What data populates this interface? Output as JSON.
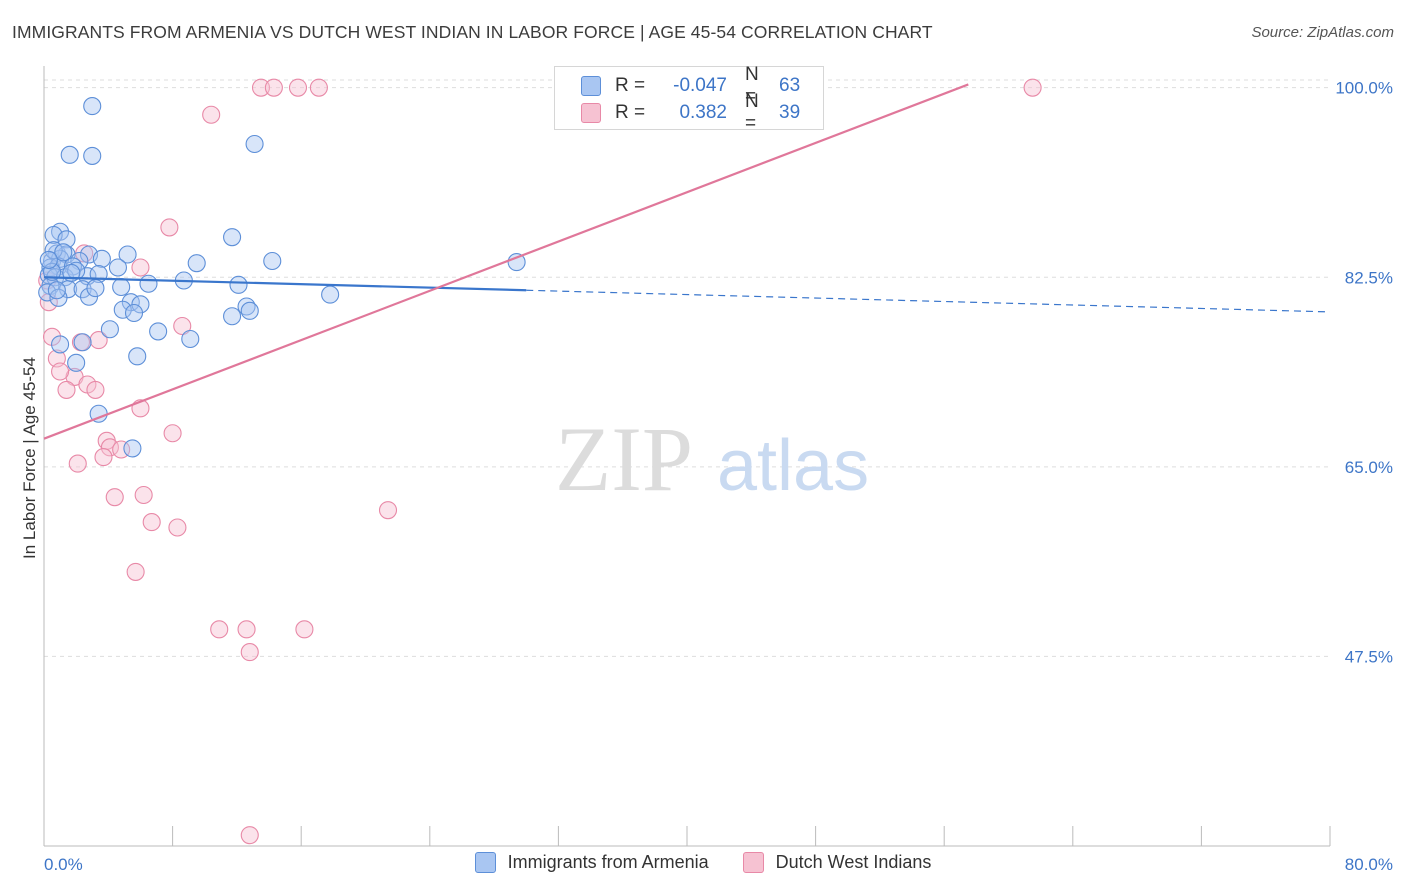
{
  "title": "IMMIGRANTS FROM ARMENIA VS DUTCH WEST INDIAN IN LABOR FORCE | AGE 45-54 CORRELATION CHART",
  "source": "Source: ZipAtlas.com",
  "watermark": {
    "zip": "ZIP",
    "atlas": "atlas"
  },
  "legend": {
    "r_label": "R =",
    "n_label": "N =",
    "armenia": {
      "r": "-0.047",
      "n": "63"
    },
    "dutch": {
      "r": "0.382",
      "n": "39"
    }
  },
  "colors": {
    "blue_fill": "#a9c6f2",
    "blue_stroke": "#5d8fd8",
    "blue_line": "#3a76cc",
    "pink_fill": "#f6c2d2",
    "pink_stroke": "#e889a7",
    "pink_line": "#e0779a",
    "grid": "#dddddd",
    "tick_text": "#3d75c7"
  },
  "chart_data": {
    "type": "scatter",
    "title": "IMMIGRANTS FROM ARMENIA VS DUTCH WEST INDIAN IN LABOR FORCE | AGE 45-54 CORRELATION CHART",
    "ylabel": "In Labor Force | Age 45-54",
    "xlabel": "",
    "xlim": [
      0,
      80
    ],
    "ylim": [
      30,
      102
    ],
    "x_tick_labels": [
      "0.0%",
      "80.0%"
    ],
    "y_ticks": [
      47.5,
      65.0,
      82.5,
      100.0
    ],
    "y_tick_labels": [
      "47.5%",
      "65.0%",
      "82.5%",
      "100.0%"
    ],
    "series": [
      {
        "name": "Immigrants from Armenia",
        "color": "blue",
        "trend": {
          "x0": 0,
          "y0": 82.5,
          "x1": 30,
          "y1": 81.3,
          "dash_to_x": 80,
          "dash_to_y": 79.3
        },
        "points": [
          [
            3.0,
            98.3
          ],
          [
            1.6,
            93.8
          ],
          [
            3.0,
            93.7
          ],
          [
            13.1,
            94.8
          ],
          [
            1.0,
            86.7
          ],
          [
            0.6,
            86.4
          ],
          [
            1.4,
            86.0
          ],
          [
            11.7,
            86.2
          ],
          [
            0.8,
            84.7
          ],
          [
            1.4,
            84.6
          ],
          [
            2.8,
            84.6
          ],
          [
            5.2,
            84.6
          ],
          [
            0.5,
            84.0
          ],
          [
            1.0,
            84.2
          ],
          [
            2.2,
            84.0
          ],
          [
            3.6,
            84.2
          ],
          [
            9.5,
            83.8
          ],
          [
            14.2,
            84.0
          ],
          [
            29.4,
            83.9
          ],
          [
            0.4,
            83.4
          ],
          [
            0.9,
            83.5
          ],
          [
            1.8,
            83.5
          ],
          [
            4.6,
            83.4
          ],
          [
            0.3,
            82.7
          ],
          [
            0.7,
            82.5
          ],
          [
            1.3,
            82.5
          ],
          [
            2.7,
            82.6
          ],
          [
            3.4,
            82.8
          ],
          [
            8.7,
            82.2
          ],
          [
            12.1,
            81.8
          ],
          [
            0.4,
            81.7
          ],
          [
            1.5,
            81.4
          ],
          [
            2.4,
            81.4
          ],
          [
            4.8,
            81.6
          ],
          [
            0.2,
            81.1
          ],
          [
            0.9,
            80.6
          ],
          [
            2.8,
            80.7
          ],
          [
            5.4,
            80.2
          ],
          [
            17.8,
            80.9
          ],
          [
            6.0,
            80.0
          ],
          [
            12.6,
            79.8
          ],
          [
            4.9,
            79.5
          ],
          [
            5.6,
            79.2
          ],
          [
            11.7,
            78.9
          ],
          [
            12.8,
            79.4
          ],
          [
            4.1,
            77.7
          ],
          [
            7.1,
            77.5
          ],
          [
            9.1,
            76.8
          ],
          [
            2.4,
            76.5
          ],
          [
            1.0,
            76.3
          ],
          [
            5.8,
            75.2
          ],
          [
            2.0,
            74.6
          ],
          [
            3.4,
            69.9
          ],
          [
            5.5,
            66.7
          ],
          [
            0.6,
            85.0
          ],
          [
            0.5,
            83.0
          ],
          [
            1.2,
            84.8
          ],
          [
            2.0,
            83.1
          ],
          [
            0.3,
            84.1
          ],
          [
            3.2,
            81.5
          ],
          [
            6.5,
            81.9
          ],
          [
            1.7,
            82.9
          ],
          [
            0.8,
            81.3
          ]
        ]
      },
      {
        "name": "Dutch West Indians",
        "color": "pink",
        "trend": {
          "x0": 0,
          "y0": 67.6,
          "x1": 57.5,
          "y1": 100.3
        },
        "points": [
          [
            13.5,
            100.0
          ],
          [
            14.3,
            100.0
          ],
          [
            15.8,
            100.0
          ],
          [
            17.1,
            100.0
          ],
          [
            61.5,
            100.0
          ],
          [
            10.4,
            97.5
          ],
          [
            7.8,
            87.1
          ],
          [
            6.0,
            83.4
          ],
          [
            0.2,
            82.2
          ],
          [
            0.3,
            80.2
          ],
          [
            8.6,
            78.0
          ],
          [
            0.5,
            77.0
          ],
          [
            2.3,
            76.5
          ],
          [
            3.4,
            76.7
          ],
          [
            0.8,
            75.0
          ],
          [
            1.9,
            73.3
          ],
          [
            2.7,
            72.6
          ],
          [
            1.4,
            72.1
          ],
          [
            3.2,
            72.1
          ],
          [
            6.0,
            70.4
          ],
          [
            8.0,
            68.1
          ],
          [
            3.9,
            67.4
          ],
          [
            4.1,
            66.8
          ],
          [
            4.8,
            66.6
          ],
          [
            3.7,
            65.9
          ],
          [
            2.1,
            65.3
          ],
          [
            4.4,
            62.2
          ],
          [
            6.2,
            62.4
          ],
          [
            6.7,
            59.9
          ],
          [
            8.3,
            59.4
          ],
          [
            21.4,
            61.0
          ],
          [
            5.7,
            55.3
          ],
          [
            10.9,
            50.0
          ],
          [
            12.6,
            50.0
          ],
          [
            16.2,
            50.0
          ],
          [
            12.8,
            47.9
          ],
          [
            12.8,
            31.0
          ],
          [
            2.5,
            84.7
          ],
          [
            1.0,
            73.8
          ]
        ]
      }
    ]
  },
  "bottom_legend": {
    "armenia": "Immigrants from Armenia",
    "dutch": "Dutch West Indians"
  }
}
